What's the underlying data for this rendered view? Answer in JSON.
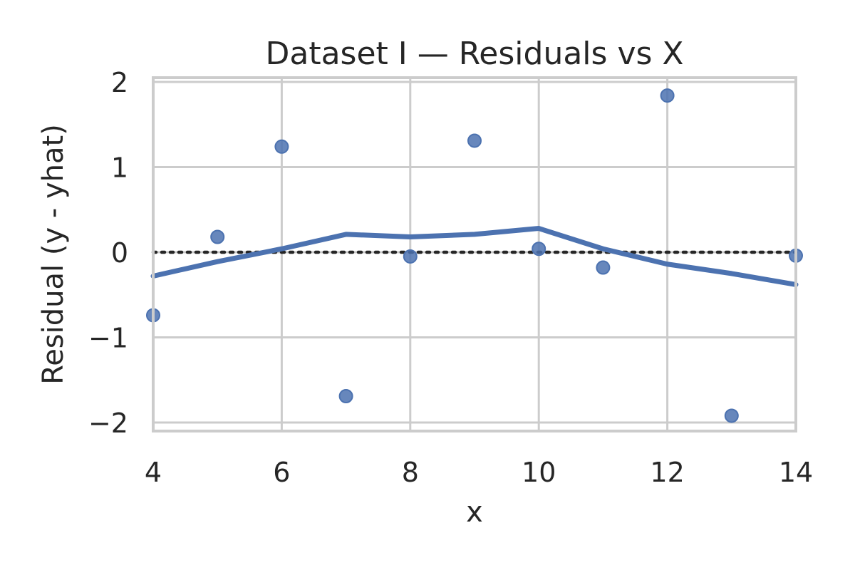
{
  "chart_data": {
    "type": "scatter",
    "title": "Dataset I — Residuals vs X",
    "xlabel": "x",
    "ylabel": "Residual (y - yhat)",
    "xlim": [
      4,
      14
    ],
    "ylim": [
      -2.1,
      2.05
    ],
    "xticks": [
      4,
      6,
      8,
      10,
      12,
      14
    ],
    "yticks": [
      -2,
      -1,
      0,
      1,
      2
    ],
    "ytick_labels": [
      "−2",
      "−1",
      "0",
      "1",
      "2"
    ],
    "grid": true,
    "reference_line": {
      "y": 0,
      "style": "dotted"
    },
    "series": [
      {
        "kind": "points",
        "x": [
          4,
          5,
          6,
          7,
          8,
          9,
          10,
          11,
          12,
          13,
          14
        ],
        "y": [
          -0.74,
          0.18,
          1.24,
          -1.69,
          -0.05,
          1.31,
          0.04,
          -0.18,
          1.84,
          -1.92,
          -0.04
        ]
      },
      {
        "kind": "smooth-line",
        "x": [
          4,
          5,
          6,
          7,
          8,
          9,
          10,
          11,
          12,
          13,
          14
        ],
        "y": [
          -0.28,
          -0.11,
          0.04,
          0.21,
          0.18,
          0.21,
          0.28,
          0.04,
          -0.14,
          -0.25,
          -0.38
        ]
      }
    ],
    "colors": {
      "series": "#4c72b0",
      "grid": "#cccccc",
      "text": "#262626"
    }
  }
}
